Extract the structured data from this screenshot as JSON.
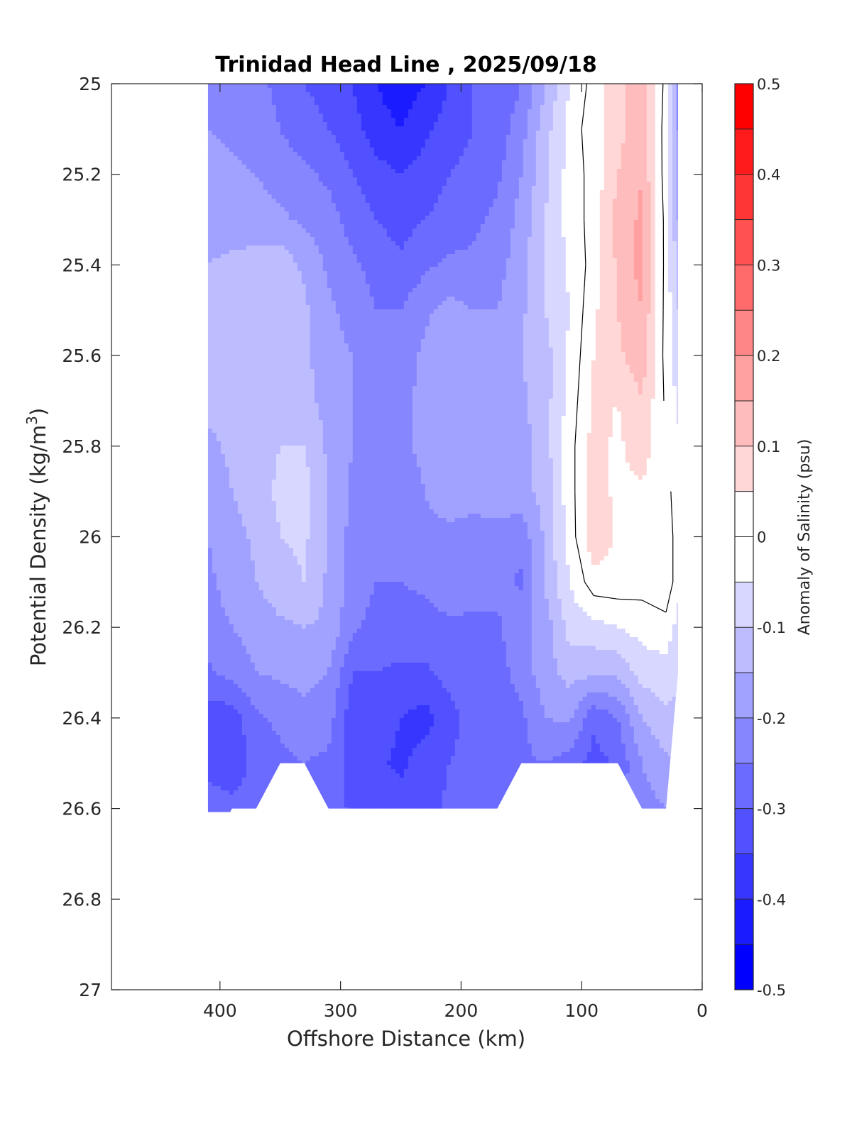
{
  "chart_data": {
    "type": "heatmap",
    "title": "Trinidad Head Line , 2025/09/18",
    "xlabel": "Offshore Distance (km)",
    "ylabel": "Potential Density (kg/m3)",
    "ylabel_base": "Potential Density (kg/m",
    "ylabel_sup": "3",
    "ylabel_close": ")",
    "xlim": [
      490,
      0
    ],
    "xdir": "reverse",
    "ylim": [
      25,
      27
    ],
    "ydir": "reverse",
    "xticks": [
      400,
      300,
      200,
      100,
      0
    ],
    "xtick_labels": [
      "400",
      "300",
      "200",
      "100",
      "0"
    ],
    "yticks": [
      25,
      25.2,
      25.4,
      25.6,
      25.8,
      26,
      26.2,
      26.4,
      26.6,
      26.8,
      27
    ],
    "ytick_labels": [
      "25",
      "25.2",
      "25.4",
      "25.6",
      "25.8",
      "26",
      "26.2",
      "26.4",
      "26.6",
      "26.8",
      "27"
    ],
    "colorbar": {
      "label": "Anomaly of Salinity (psu)",
      "range": [
        -0.5,
        0.5
      ],
      "step": 0.05,
      "ticks": [
        -0.5,
        -0.4,
        -0.3,
        -0.2,
        -0.1,
        0,
        0.1,
        0.2,
        0.3,
        0.4,
        0.5
      ],
      "tick_labels": [
        "-0.5",
        "-0.4",
        "-0.3",
        "-0.2",
        "-0.1",
        "0",
        "0.1",
        "0.2",
        "0.3",
        "0.4",
        "0.5"
      ]
    },
    "grid": false,
    "contour_level_outlined": 0,
    "x": [
      410,
      390,
      370,
      350,
      330,
      310,
      290,
      270,
      250,
      230,
      210,
      190,
      170,
      150,
      130,
      110,
      90,
      70,
      50,
      30,
      20
    ],
    "y": [
      25.0,
      25.1,
      25.2,
      25.3,
      25.4,
      25.5,
      25.6,
      25.7,
      25.8,
      25.9,
      26.0,
      26.1,
      26.2,
      26.3,
      26.4,
      26.5,
      26.6
    ],
    "z": [
      [
        -0.2,
        -0.22,
        -0.24,
        -0.26,
        -0.3,
        -0.32,
        -0.35,
        -0.4,
        -0.43,
        -0.4,
        -0.35,
        -0.3,
        -0.3,
        -0.25,
        -0.15,
        -0.05,
        0.02,
        0.08,
        0.14,
        -0.02,
        -0.2
      ],
      [
        -0.2,
        -0.21,
        -0.23,
        -0.25,
        -0.28,
        -0.3,
        -0.33,
        -0.38,
        -0.4,
        -0.36,
        -0.33,
        -0.3,
        -0.28,
        -0.22,
        -0.12,
        -0.03,
        0.03,
        0.08,
        0.14,
        -0.03,
        -0.2
      ],
      [
        -0.18,
        -0.19,
        -0.2,
        -0.22,
        -0.24,
        -0.26,
        -0.3,
        -0.33,
        -0.35,
        -0.33,
        -0.3,
        -0.28,
        -0.26,
        -0.2,
        -0.11,
        -0.03,
        0.02,
        0.1,
        0.15,
        -0.03,
        -0.18
      ],
      [
        -0.17,
        -0.17,
        -0.18,
        -0.19,
        -0.21,
        -0.23,
        -0.27,
        -0.3,
        -0.32,
        -0.3,
        -0.28,
        -0.26,
        -0.24,
        -0.18,
        -0.1,
        -0.03,
        0.02,
        0.12,
        0.16,
        -0.02,
        -0.15
      ],
      [
        -0.15,
        -0.14,
        -0.13,
        -0.12,
        -0.16,
        -0.21,
        -0.24,
        -0.27,
        -0.29,
        -0.26,
        -0.24,
        -0.24,
        -0.22,
        -0.17,
        -0.1,
        -0.04,
        0.02,
        0.11,
        0.17,
        -0.02,
        -0.12
      ],
      [
        -0.14,
        -0.13,
        -0.12,
        -0.12,
        -0.14,
        -0.19,
        -0.22,
        -0.25,
        -0.25,
        -0.21,
        -0.18,
        -0.2,
        -0.2,
        -0.16,
        -0.1,
        -0.05,
        0.04,
        0.1,
        0.15,
        -0.02,
        -0.1
      ],
      [
        -0.14,
        -0.13,
        -0.12,
        -0.12,
        -0.14,
        -0.18,
        -0.2,
        -0.22,
        -0.22,
        -0.19,
        -0.17,
        -0.18,
        -0.18,
        -0.15,
        -0.12,
        -0.04,
        0.05,
        0.09,
        0.13,
        -0.02,
        -0.08
      ],
      [
        -0.14,
        -0.13,
        -0.12,
        -0.11,
        -0.13,
        -0.17,
        -0.2,
        -0.21,
        -0.21,
        -0.19,
        -0.17,
        -0.17,
        -0.17,
        -0.16,
        -0.12,
        -0.03,
        0.06,
        0.05,
        0.1,
        -0.01,
        -0.06
      ],
      [
        -0.16,
        -0.14,
        -0.12,
        -0.1,
        -0.1,
        -0.16,
        -0.2,
        -0.21,
        -0.21,
        -0.19,
        -0.17,
        -0.18,
        -0.18,
        -0.17,
        -0.12,
        -0.02,
        0.07,
        0.04,
        0.08,
        0.0,
        -0.04
      ],
      [
        -0.18,
        -0.15,
        -0.12,
        -0.09,
        -0.08,
        -0.15,
        -0.21,
        -0.22,
        -0.22,
        -0.2,
        -0.18,
        -0.18,
        -0.17,
        -0.17,
        -0.13,
        -0.02,
        0.07,
        0.04,
        0.04,
        0.02,
        -0.03
      ],
      [
        -0.2,
        -0.17,
        -0.14,
        -0.1,
        -0.09,
        -0.15,
        -0.22,
        -0.24,
        -0.23,
        -0.21,
        -0.21,
        -0.22,
        -0.22,
        -0.23,
        -0.14,
        -0.03,
        0.09,
        0.04,
        0.02,
        0.04,
        -0.03
      ],
      [
        -0.21,
        -0.18,
        -0.15,
        -0.12,
        -0.1,
        -0.16,
        -0.22,
        -0.25,
        -0.25,
        -0.24,
        -0.22,
        -0.23,
        -0.23,
        -0.26,
        -0.14,
        -0.05,
        0.03,
        0.03,
        0.02,
        0.04,
        -0.03
      ],
      [
        -0.22,
        -0.2,
        -0.18,
        -0.16,
        -0.15,
        -0.16,
        -0.24,
        -0.27,
        -0.27,
        -0.27,
        -0.26,
        -0.26,
        -0.26,
        -0.21,
        -0.18,
        -0.08,
        -0.07,
        -0.05,
        -0.03,
        -0.02,
        -0.07
      ],
      [
        -0.26,
        -0.23,
        -0.2,
        -0.19,
        -0.18,
        -0.2,
        -0.3,
        -0.3,
        -0.31,
        -0.31,
        -0.28,
        -0.27,
        -0.27,
        -0.23,
        -0.17,
        -0.13,
        -0.14,
        -0.14,
        -0.08,
        -0.07,
        -0.09
      ],
      [
        -0.33,
        -0.33,
        -0.26,
        -0.24,
        -0.22,
        -0.23,
        -0.33,
        -0.33,
        -0.35,
        -0.37,
        -0.32,
        -0.28,
        -0.28,
        -0.26,
        -0.2,
        -0.19,
        -0.29,
        -0.25,
        -0.15,
        -0.11,
        -0.12
      ],
      [
        -0.32,
        -0.34,
        -0.28,
        -0.26,
        -0.25,
        -0.26,
        -0.33,
        -0.34,
        -0.36,
        -0.33,
        -0.3,
        -0.28,
        -0.3,
        -0.26,
        -0.25,
        -0.27,
        -0.32,
        -0.29,
        -0.2,
        -0.16,
        -0.15
      ],
      [
        -0.27,
        -0.28,
        -0.27,
        -0.27,
        -0.27,
        -0.27,
        -0.31,
        -0.32,
        -0.33,
        -0.32,
        -0.29,
        -0.28,
        -0.28,
        -0.26,
        -0.25,
        -0.25,
        -0.27,
        -0.25,
        -0.22,
        -0.2,
        -0.2
      ]
    ],
    "data_extent_bottom": [
      26.7,
      26.6,
      26.6,
      26.5,
      26.5,
      26.6,
      26.6,
      26.6,
      26.6,
      26.6,
      26.6,
      26.6,
      26.6,
      26.5,
      26.5,
      26.5,
      26.5,
      26.5,
      26.6,
      26.6,
      26.3
    ]
  }
}
